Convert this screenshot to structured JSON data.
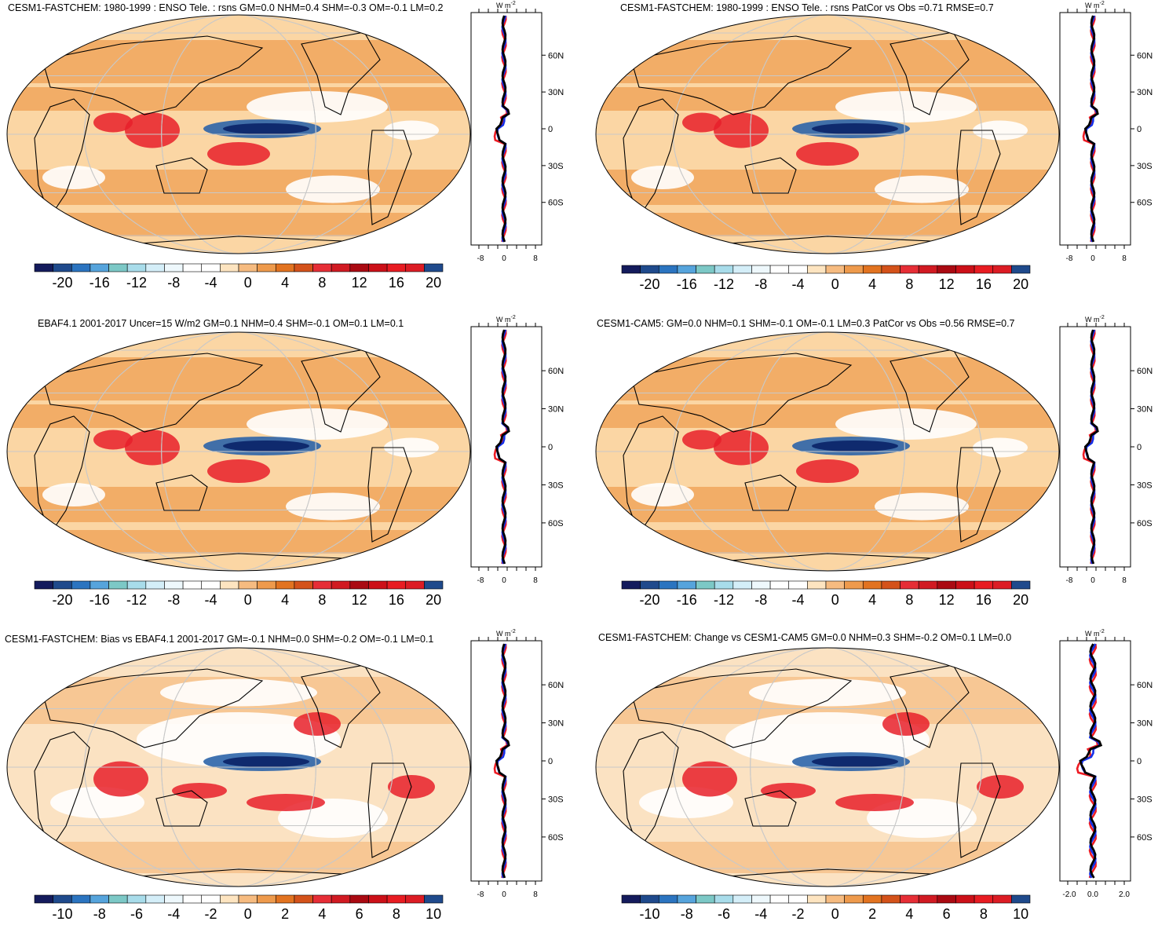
{
  "colors": {
    "ocean_bg": "#ffffff",
    "deep_blue": "#0f2a6e",
    "mid_blue": "#2c64a8",
    "light_orange": "#fbd6a4",
    "orange": "#f0a258",
    "dark_orange": "#e07020",
    "red": "#e8202a",
    "dark_red": "#a00a14",
    "profile_red": "#ee1c24",
    "profile_blue": "#1430e8",
    "profile_black": "#000000",
    "coast": "#000000"
  },
  "colorbar_colors": [
    "#141b5c",
    "#1f4a8c",
    "#2b74c0",
    "#56a4dc",
    "#7cc8c6",
    "#a8dcea",
    "#d4eef8",
    "#eef8fc",
    "#ffffff",
    "#ffffff",
    "#fde4c0",
    "#f6bb80",
    "#ee9a4c",
    "#e27320",
    "#d4521a",
    "#e62e36",
    "#d11a22",
    "#aa0a12",
    "#cc1018",
    "#e81c22",
    "#dc1c24",
    "#1f4a8c"
  ],
  "profile_axis_unit": "W m",
  "profile_axis_unit_sup": "-2",
  "lat_labels": [
    "60N",
    "30N",
    "0",
    "30S",
    "60S"
  ],
  "panels": [
    {
      "title": "CESM1-FASTCHEM: 1980-1999 : ENSO Tele. : rsns GM=0.0 NHM=0.4 SHM=-0.3 OM=-0.1 LM=0.2",
      "cbar_labels": [
        "-20",
        "-16",
        "-12",
        "-8",
        "-4",
        "0",
        "4",
        "8",
        "12",
        "16",
        "20"
      ],
      "prof_ticks": [
        "-8",
        "0",
        "8"
      ]
    },
    {
      "title": "CESM1-FASTCHEM: 1980-1999 : ENSO Tele. : rsns PatCor vs Obs =0.71 RMSE=0.7",
      "cbar_labels": [
        "-20",
        "-16",
        "-12",
        "-8",
        "-4",
        "0",
        "4",
        "8",
        "12",
        "16",
        "20"
      ],
      "prof_ticks": [
        "-8",
        "0",
        "8"
      ]
    },
    {
      "title": "EBAF4.1 2001-2017 Uncer=15 W/m2 GM=0.1 NHM=0.4 SHM=-0.1 OM=0.1 LM=0.1",
      "cbar_labels": [
        "-20",
        "-16",
        "-12",
        "-8",
        "-4",
        "0",
        "4",
        "8",
        "12",
        "16",
        "20"
      ],
      "prof_ticks": [
        "-8",
        "0",
        "8"
      ]
    },
    {
      "title": "CESM1-CAM5: GM=0.0 NHM=0.1 SHM=-0.1 OM=-0.1 LM=0.3 PatCor vs Obs =0.56 RMSE=0.7",
      "cbar_labels": [
        "-20",
        "-16",
        "-12",
        "-8",
        "-4",
        "0",
        "4",
        "8",
        "12",
        "16",
        "20"
      ],
      "prof_ticks": [
        "-8",
        "0",
        "8"
      ]
    },
    {
      "title": "CESM1-FASTCHEM: Bias vs EBAF4.1 2001-2017 GM=-0.1 NHM=0.0 SHM=-0.2 OM=-0.1 LM=0.1",
      "cbar_labels": [
        "-10",
        "-8",
        "-6",
        "-4",
        "-2",
        "0",
        "2",
        "4",
        "6",
        "8",
        "10"
      ],
      "prof_ticks": [
        "-8",
        "0",
        "8"
      ]
    },
    {
      "title": "CESM1-FASTCHEM: Change vs CESM1-CAM5 GM=0.0 NHM=0.3 SHM=-0.2 OM=0.1 LM=0.0",
      "cbar_labels": [
        "-10",
        "-8",
        "-6",
        "-4",
        "-2",
        "0",
        "2",
        "4",
        "6",
        "8",
        "10"
      ],
      "prof_ticks": [
        "-2.0",
        "0.0",
        "2.0"
      ]
    }
  ]
}
